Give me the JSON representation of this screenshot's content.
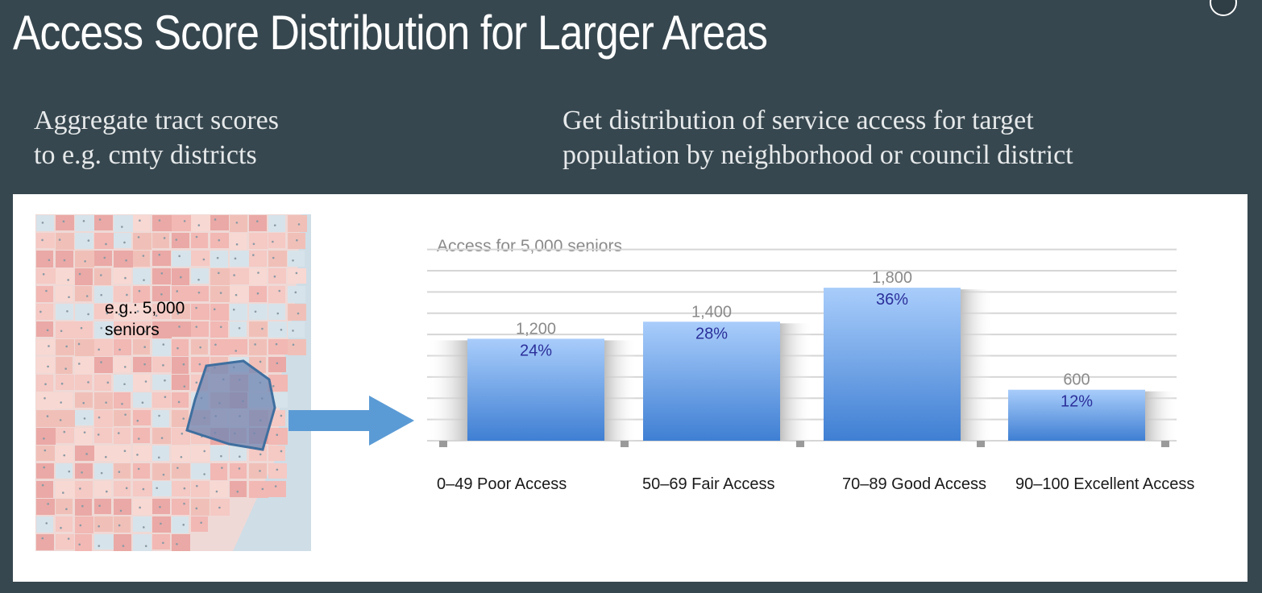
{
  "slide": {
    "title": "Access Score Distribution for Larger Areas",
    "left_text": "Aggregate tract scores\nto e.g. cmty districts",
    "right_text": "Get distribution of service access for target\npopulation by neighborhood or council district"
  },
  "map": {
    "label": "e.g.: 5,000\nseniors",
    "colors": {
      "land": "#efd9d6",
      "tract_red": "#f2b8b4",
      "water": "#cfdde6",
      "outline": "#3f6f9f"
    }
  },
  "chart_data": {
    "type": "bar",
    "title": "Access for 5,000 seniors",
    "categories": [
      "0–49  Poor Access",
      "50–69 Fair Access",
      "70–89 Good Access",
      "90–100  Excellent Access"
    ],
    "values": [
      1200,
      1400,
      1800,
      600
    ],
    "percent_labels": [
      "24%",
      "28%",
      "36%",
      "12%"
    ],
    "value_labels": [
      "1,200",
      "1,400",
      "1,800",
      "600"
    ],
    "ylim": [
      0,
      2000
    ],
    "grid": true,
    "legend": "none",
    "colors": {
      "bar_top": "#a9cdfb",
      "bar_bottom": "#3f7fd3",
      "grid": "#d6d6d6",
      "arrow": "#5b9bd5"
    }
  }
}
